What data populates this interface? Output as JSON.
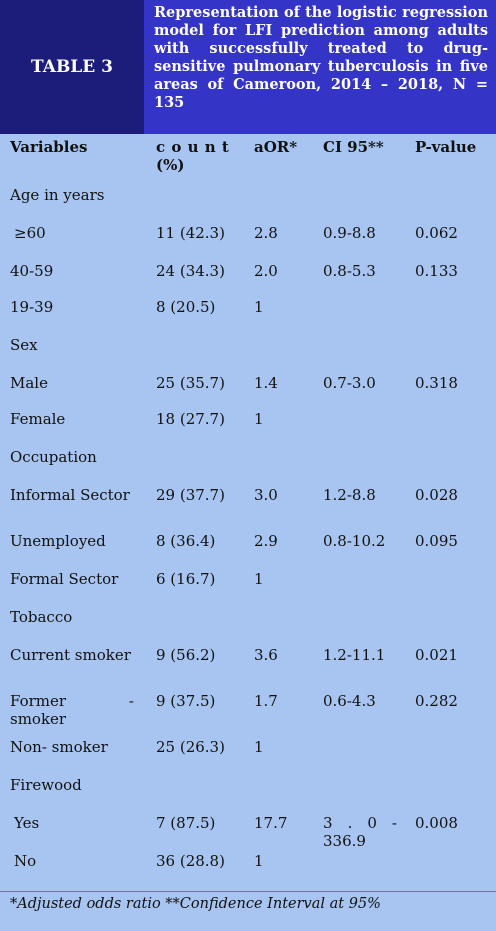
{
  "table_label": "TABLE 3",
  "title": "Representation of the logistic regression model for LFI prediction among adults with successfully treated to drug-sensitive pulmonary tuberculosis in five areas of Cameroon, 2014 – 2018, N = 135",
  "columns": {
    "variables": "Variables",
    "count": "c o u n t",
    "count_unit": "(%)",
    "aor": "aOR*",
    "ci": "CI 95**",
    "p": "P-value"
  },
  "rows": [
    {
      "type": "group",
      "label": "Age in years"
    },
    {
      "type": "data",
      "label": "≥60",
      "count": "11 (42.3)",
      "aor": "2.8",
      "ci": "0.9-8.8",
      "p": "0.062"
    },
    {
      "type": "data",
      "label": "40-59",
      "count": "24 (34.3)",
      "aor": "2.0",
      "ci": "0.8-5.3",
      "p": "0.133"
    },
    {
      "type": "data",
      "label": "19-39",
      "count": "8 (20.5)",
      "aor": "1",
      "ci": "",
      "p": ""
    },
    {
      "type": "group",
      "label": "Sex"
    },
    {
      "type": "data",
      "label": "Male",
      "count": "25 (35.7)",
      "aor": "1.4",
      "ci": "0.7-3.0",
      "p": "0.318"
    },
    {
      "type": "data",
      "label": "Female",
      "count": "18 (27.7)",
      "aor": "1",
      "ci": "",
      "p": ""
    },
    {
      "type": "group",
      "label": "Occupation"
    },
    {
      "type": "data",
      "label": "Informal Sector",
      "count": "29 (37.7)",
      "aor": "3.0",
      "ci": "1.2-8.8",
      "p": "0.028"
    },
    {
      "type": "data",
      "label": "Unemployed",
      "count": "8 (36.4)",
      "aor": "2.9",
      "ci": "0.8-10.2",
      "p": "0.095"
    },
    {
      "type": "data",
      "label": "Formal Sector",
      "count": "6 (16.7)",
      "aor": "1",
      "ci": "",
      "p": ""
    },
    {
      "type": "group",
      "label": "Tobacco"
    },
    {
      "type": "data",
      "label": "Current smoker",
      "count": "9 (56.2)",
      "aor": "3.6",
      "ci": "1.2-11.1",
      "p": "0.021"
    },
    {
      "type": "data",
      "label": "Former - smoker",
      "count": "9 (37.5)",
      "aor": "1.7",
      "ci": "0.6-4.3",
      "p": "0.282"
    },
    {
      "type": "data",
      "label": "Non- smoker",
      "count": "25 (26.3)",
      "aor": "1",
      "ci": "",
      "p": ""
    },
    {
      "type": "group",
      "label": "Firewood"
    },
    {
      "type": "data",
      "label": "Yes",
      "count": "7 (87.5)",
      "aor": "17.7",
      "ci": "3 . 0 - 336.9",
      "p": "0.008"
    },
    {
      "type": "data",
      "label": "No",
      "count": "36 (28.8)",
      "aor": "1",
      "ci": "",
      "p": ""
    }
  ],
  "footnote": "*Adjusted odds ratio **Confidence Interval at 95%"
}
